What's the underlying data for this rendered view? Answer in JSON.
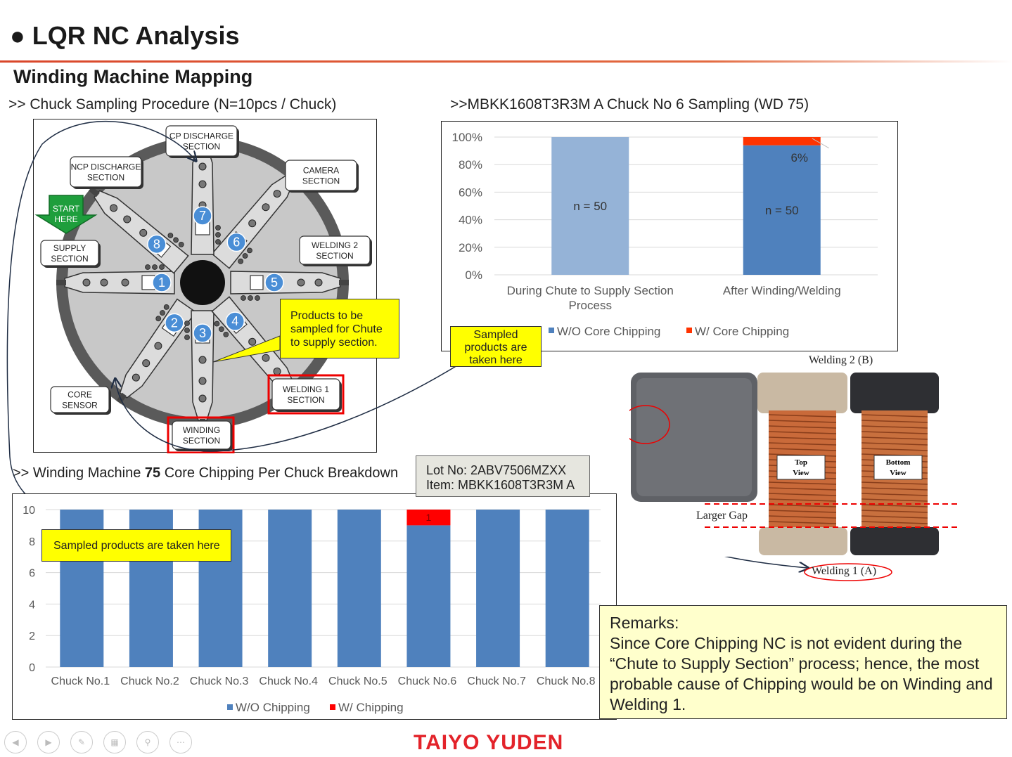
{
  "slide": {
    "title": "● LQR NC Analysis",
    "subtitle": "Winding Machine Mapping",
    "header_procedure": ">> Chuck Sampling Procedure (N=10pcs / Chuck)",
    "header_stack": ">>MBKK1608T3R3M A  Chuck No 6 Sampling (WD 75)",
    "header_chuck_prefix": ">> Winding Machine ",
    "header_chuck_bold": "75",
    "header_chuck_suffix": " Core Chipping Per Chuck Breakdown"
  },
  "diagram": {
    "sections": {
      "cp_discharge": [
        "CP DISCHARGE",
        "SECTION"
      ],
      "ncp_discharge": [
        "NCP DISCHARGE",
        "SECTION"
      ],
      "camera": [
        "CAMERA",
        "SECTION"
      ],
      "start": [
        "START",
        "HERE"
      ],
      "supply": [
        "SUPPLY",
        "SECTION"
      ],
      "welding2": [
        "WELDING 2",
        "SECTION"
      ],
      "welding1": [
        "WELDING 1",
        "SECTION"
      ],
      "winding": [
        "WINDING",
        "SECTION"
      ],
      "core_sensor": [
        "CORE",
        "SENSOR"
      ]
    },
    "chuck_numbers": [
      "1",
      "2",
      "3",
      "4",
      "5",
      "6",
      "7",
      "8"
    ]
  },
  "callouts": {
    "chute_line1": "Products to be",
    "chute_line2": "sampled for Chute",
    "chute_line3": "to supply section.",
    "stack_line1": "Sampled",
    "stack_line2": "products are",
    "stack_line3": "taken here",
    "chuck": "Sampled products are taken here"
  },
  "lot": {
    "lot_no": "Lot No: 2ABV7506MZXX",
    "item": "Item: MBKK1608T3R3M A"
  },
  "remarks": {
    "heading": "Remarks:",
    "text": "Since Core Chipping NC is not evident during the “Chute to Supply Section” process; hence, the most probable cause of Chipping would be on Winding and Welding 1."
  },
  "photo": {
    "welding2": "Welding 2 (B)",
    "welding1": "Welding 1 (A)",
    "larger_gap": "Larger Gap",
    "top_view": [
      "Top",
      "View"
    ],
    "bottom_view": [
      "Bottom",
      "View"
    ]
  },
  "footer": {
    "logo": "TAIYO YUDEN"
  },
  "colors": {
    "accent_red": "#e3232a",
    "bar_blue": "#4f81bd",
    "bar_light_blue": "#95b3d7",
    "chip_red": "#ff0000",
    "chip_orange": "#ff3300",
    "callout_yellow": "#ffff00",
    "remarks_bg": "#ffffcc"
  },
  "chart_data": [
    {
      "type": "bar",
      "stacked": true,
      "categories": [
        "During Chute to Supply Section Process",
        "After Winding/Welding"
      ],
      "category_lines": [
        [
          "During Chute to Supply Section",
          "Process"
        ],
        [
          "After Winding/Welding"
        ]
      ],
      "series": [
        {
          "name": "W/O Core Chipping",
          "values": [
            100,
            94
          ],
          "color": "#4f81bd"
        },
        {
          "name": "W/ Core Chipping",
          "values": [
            0,
            6
          ],
          "color": "#ff3300"
        }
      ],
      "bar_colors_wo": [
        "#95b3d7",
        "#4f81bd"
      ],
      "bar_labels": [
        "n = 50",
        "n = 50"
      ],
      "annotation": "6%",
      "yticks": [
        "0%",
        "20%",
        "40%",
        "60%",
        "80%",
        "100%"
      ],
      "ylim": [
        0,
        100
      ],
      "legend": "bottom",
      "grid": true
    },
    {
      "type": "bar",
      "stacked": true,
      "categories": [
        "Chuck No.1",
        "Chuck No.2",
        "Chuck No.3",
        "Chuck No.4",
        "Chuck No.5",
        "Chuck No.6",
        "Chuck No.7",
        "Chuck No.8"
      ],
      "series": [
        {
          "name": "W/O Chipping",
          "values": [
            10,
            10,
            10,
            10,
            10,
            9,
            10,
            10
          ],
          "color": "#4f81bd"
        },
        {
          "name": "W/ Chipping",
          "values": [
            0,
            0,
            0,
            0,
            0,
            1,
            0,
            0
          ],
          "color": "#ff0000"
        }
      ],
      "data_label": "1",
      "yticks": [
        "0",
        "2",
        "4",
        "6",
        "8",
        "10"
      ],
      "ylim": [
        0,
        10
      ],
      "legend": "bottom",
      "grid": true
    }
  ]
}
